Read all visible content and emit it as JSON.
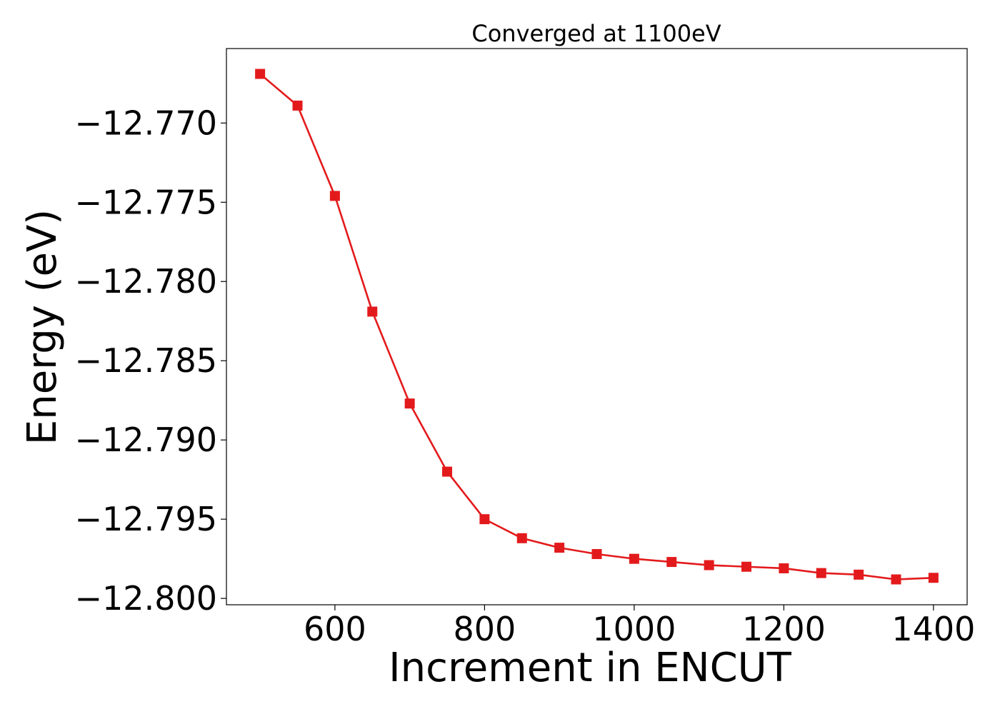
{
  "chart_data": {
    "type": "line",
    "title": "Converged at 1100eV",
    "xlabel": "Increment in ENCUT",
    "ylabel": "Energy (eV)",
    "xlim": [
      455,
      1445
    ],
    "ylim": [
      -12.8004,
      -12.7653
    ],
    "x_ticks": [
      600,
      800,
      1000,
      1200,
      1400
    ],
    "x_tick_labels": [
      "600",
      "800",
      "1000",
      "1200",
      "1400"
    ],
    "y_ticks": [
      -12.77,
      -12.775,
      -12.78,
      -12.785,
      -12.79,
      -12.795,
      -12.8
    ],
    "y_tick_labels": [
      "−12.770",
      "−12.775",
      "−12.780",
      "−12.785",
      "−12.790",
      "−12.795",
      "−12.800"
    ],
    "grid": false,
    "series": [
      {
        "color": "#e31a1c",
        "marker": "square",
        "x": [
          500,
          550,
          600,
          650,
          700,
          750,
          800,
          850,
          900,
          950,
          1000,
          1050,
          1100,
          1150,
          1200,
          1250,
          1300,
          1350,
          1400
        ],
        "y": [
          -12.7669,
          -12.7689,
          -12.7746,
          -12.7819,
          -12.7877,
          -12.792,
          -12.795,
          -12.7962,
          -12.7968,
          -12.7972,
          -12.7975,
          -12.7977,
          -12.7979,
          -12.798,
          -12.7981,
          -12.7984,
          -12.7985,
          -12.7988,
          -12.7987
        ]
      }
    ]
  }
}
